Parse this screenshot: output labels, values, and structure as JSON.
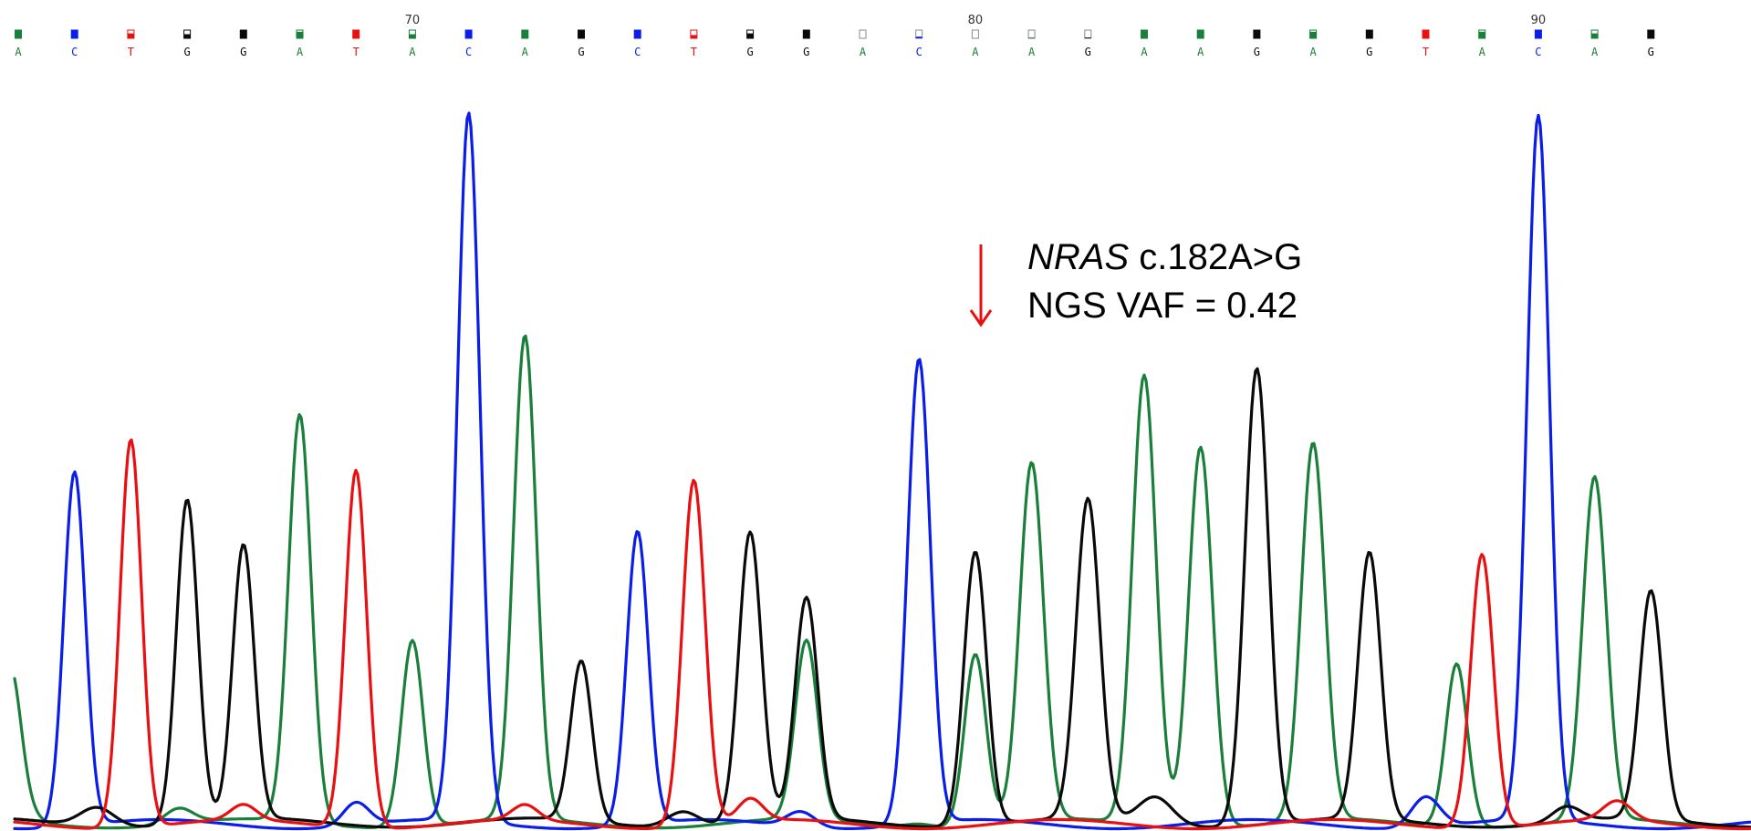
{
  "colors": {
    "A": "#1a7f3a",
    "C": "#0a1ee8",
    "G": "#0a0a0a",
    "T": "#e81010",
    "annotation_arrow": "#e81010"
  },
  "annotation": {
    "gene": "NRAS",
    "variant": "c.182A>G",
    "vaf_line": "NGS VAF = 0.42"
  },
  "chart_data": {
    "type": "line",
    "title": "",
    "xlabel": "",
    "ylabel": "",
    "x_ticks": [
      {
        "label": "70",
        "base_index": 7
      },
      {
        "label": "80",
        "base_index": 17
      },
      {
        "label": "90",
        "base_index": 27
      }
    ],
    "sequence": [
      "A",
      "C",
      "T",
      "G",
      "G",
      "A",
      "T",
      "A",
      "C",
      "A",
      "G",
      "C",
      "T",
      "G",
      "G",
      "A",
      "C",
      "A",
      "A",
      "G",
      "A",
      "A",
      "G",
      "A",
      "G",
      "T",
      "A",
      "C",
      "A",
      "G"
    ],
    "quality_boxes": [
      {
        "fill": 1.0,
        "open": false
      },
      {
        "fill": 1.0,
        "open": false
      },
      {
        "fill": 0.6,
        "open": false
      },
      {
        "fill": 0.5,
        "open": false
      },
      {
        "fill": 1.0,
        "open": false
      },
      {
        "fill": 0.8,
        "open": false
      },
      {
        "fill": 1.0,
        "open": false
      },
      {
        "fill": 0.5,
        "open": false
      },
      {
        "fill": 1.0,
        "open": false
      },
      {
        "fill": 1.0,
        "open": false
      },
      {
        "fill": 1.0,
        "open": false
      },
      {
        "fill": 1.0,
        "open": false
      },
      {
        "fill": 0.4,
        "open": false
      },
      {
        "fill": 0.6,
        "open": false
      },
      {
        "fill": 1.0,
        "open": false
      },
      {
        "fill": 0.0,
        "open": true
      },
      {
        "fill": 0.2,
        "open": true
      },
      {
        "fill": 0.0,
        "open": true
      },
      {
        "fill": 0.1,
        "open": true
      },
      {
        "fill": 0.1,
        "open": true
      },
      {
        "fill": 1.0,
        "open": false
      },
      {
        "fill": 1.0,
        "open": false
      },
      {
        "fill": 1.0,
        "open": false
      },
      {
        "fill": 0.8,
        "open": false
      },
      {
        "fill": 1.0,
        "open": false
      },
      {
        "fill": 1.0,
        "open": false
      },
      {
        "fill": 0.8,
        "open": false
      },
      {
        "fill": 1.0,
        "open": false
      },
      {
        "fill": 0.6,
        "open": false
      },
      {
        "fill": 1.0,
        "open": false
      }
    ],
    "series": [
      {
        "channel": "A",
        "baseline": 0.004,
        "peaks": [
          {
            "base_index": -0.15,
            "height": 0.185,
            "width": 0.38
          },
          {
            "base_index": 0,
            "height": 0.02,
            "width": 0.5
          },
          {
            "base_index": 2.85,
            "height": 0.02,
            "width": 0.5
          },
          {
            "base_index": 5,
            "height": 0.535,
            "width": 0.4
          },
          {
            "base_index": 7,
            "height": 0.245,
            "width": 0.38
          },
          {
            "base_index": 9,
            "height": 0.635,
            "width": 0.4
          },
          {
            "base_index": 14,
            "height": 0.235,
            "width": 0.4
          },
          {
            "base_index": 16,
            "height": 0.005,
            "width": 0.5
          },
          {
            "base_index": 17,
            "height": 0.225,
            "width": 0.38
          },
          {
            "base_index": 18,
            "height": 0.47,
            "width": 0.42
          },
          {
            "base_index": 20,
            "height": 0.59,
            "width": 0.42
          },
          {
            "base_index": 21,
            "height": 0.5,
            "width": 0.42
          },
          {
            "base_index": 23,
            "height": 0.495,
            "width": 0.42
          },
          {
            "base_index": 25.55,
            "height": 0.215,
            "width": 0.38
          },
          {
            "base_index": 28,
            "height": 0.45,
            "width": 0.42
          }
        ]
      },
      {
        "channel": "C",
        "baseline": 0.003,
        "peaks": [
          {
            "base_index": 1,
            "height": 0.465,
            "width": 0.38
          },
          {
            "base_index": 6,
            "height": 0.03,
            "width": 0.45
          },
          {
            "base_index": 8,
            "height": 0.93,
            "width": 0.4
          },
          {
            "base_index": 11,
            "height": 0.385,
            "width": 0.38
          },
          {
            "base_index": 13.9,
            "height": 0.02,
            "width": 0.5
          },
          {
            "base_index": 16,
            "height": 0.61,
            "width": 0.4
          },
          {
            "base_index": 25,
            "height": 0.04,
            "width": 0.5
          },
          {
            "base_index": 27,
            "height": 0.925,
            "width": 0.4
          }
        ]
      },
      {
        "channel": "G",
        "baseline": 0.005,
        "peaks": [
          {
            "base_index": 1.4,
            "height": 0.025,
            "width": 0.6
          },
          {
            "base_index": 3,
            "height": 0.425,
            "width": 0.38
          },
          {
            "base_index": 4,
            "height": 0.36,
            "width": 0.38
          },
          {
            "base_index": 10,
            "height": 0.21,
            "width": 0.38
          },
          {
            "base_index": 11.8,
            "height": 0.02,
            "width": 0.55
          },
          {
            "base_index": 13,
            "height": 0.38,
            "width": 0.4
          },
          {
            "base_index": 14,
            "height": 0.29,
            "width": 0.4
          },
          {
            "base_index": 17,
            "height": 0.36,
            "width": 0.4
          },
          {
            "base_index": 19,
            "height": 0.42,
            "width": 0.42
          },
          {
            "base_index": 20.2,
            "height": 0.035,
            "width": 0.6
          },
          {
            "base_index": 22,
            "height": 0.6,
            "width": 0.42
          },
          {
            "base_index": 24,
            "height": 0.35,
            "width": 0.4
          },
          {
            "base_index": 27.5,
            "height": 0.02,
            "width": 0.5
          },
          {
            "base_index": 29,
            "height": 0.3,
            "width": 0.4
          }
        ]
      },
      {
        "channel": "T",
        "baseline": 0.003,
        "peaks": [
          {
            "base_index": 2,
            "height": 0.51,
            "width": 0.38
          },
          {
            "base_index": 4,
            "height": 0.02,
            "width": 0.45
          },
          {
            "base_index": 6,
            "height": 0.47,
            "width": 0.38
          },
          {
            "base_index": 9,
            "height": 0.02,
            "width": 0.45
          },
          {
            "base_index": 12,
            "height": 0.455,
            "width": 0.4
          },
          {
            "base_index": 13,
            "height": 0.03,
            "width": 0.45
          },
          {
            "base_index": 26,
            "height": 0.36,
            "width": 0.4
          },
          {
            "base_index": 28.4,
            "height": 0.025,
            "width": 0.5
          }
        ]
      }
    ]
  }
}
